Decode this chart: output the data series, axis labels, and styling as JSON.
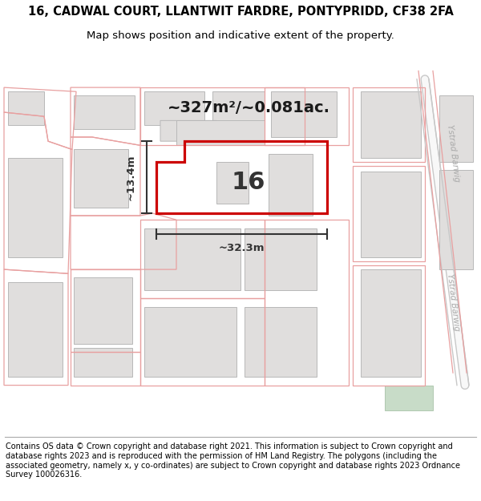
{
  "title_line1": "16, CADWAL COURT, LLANTWIT FARDRE, PONTYPRIDD, CF38 2FA",
  "title_line2": "Map shows position and indicative extent of the property.",
  "footer_text": "Contains OS data © Crown copyright and database right 2021. This information is subject to Crown copyright and database rights 2023 and is reproduced with the permission of HM Land Registry. The polygons (including the associated geometry, namely x, y co-ordinates) are subject to Crown copyright and database rights 2023 Ordnance Survey 100026316.",
  "area_text": "~327m²/~0.081ac.",
  "width_text": "~32.3m",
  "height_text": "~13.4m",
  "number_text": "16",
  "map_bg": "#ffffff",
  "building_fill": "#e0dedd",
  "building_edge": "#b8b8b8",
  "plot_edge": "#e8a0a0",
  "highlight_edge": "#cc0000",
  "road_label_color": "#aaaaaa",
  "dim_color": "#333333",
  "title_fontsize": 10.5,
  "subtitle_fontsize": 9.5,
  "footer_fontsize": 7.0,
  "area_fontsize": 14,
  "num_fontsize": 22,
  "dim_fontsize": 9.5
}
